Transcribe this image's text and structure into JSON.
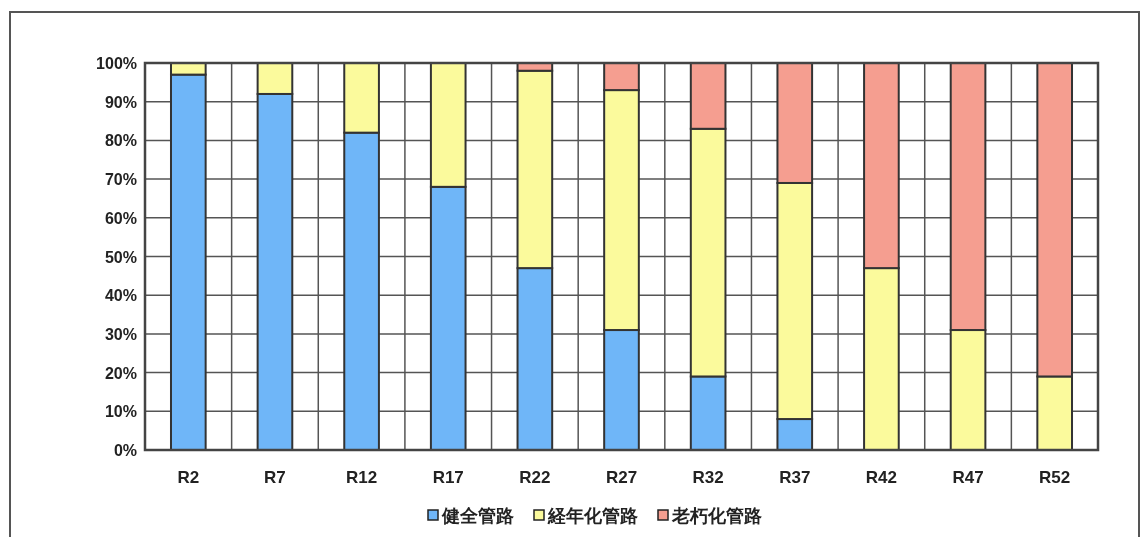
{
  "chart_data": {
    "type": "bar",
    "stacked": true,
    "categories": [
      "R2",
      "R7",
      "R12",
      "R17",
      "R22",
      "R27",
      "R32",
      "R37",
      "R42",
      "R47",
      "R52"
    ],
    "series": [
      {
        "name": "健全管路",
        "color": "#6fb6f8",
        "values": [
          97,
          92,
          82,
          68,
          47,
          31,
          19,
          8,
          0,
          0,
          0
        ]
      },
      {
        "name": "経年化管路",
        "color": "#fbfa9c",
        "values": [
          3,
          8,
          18,
          32,
          51,
          62,
          64,
          61,
          47,
          31,
          19
        ]
      },
      {
        "name": "老朽化管路",
        "color": "#f59e90",
        "values": [
          0,
          0,
          0,
          0,
          2,
          7,
          17,
          31,
          53,
          69,
          81
        ]
      }
    ],
    "ylim": [
      0,
      100
    ],
    "yticks": [
      {
        "value": 0,
        "label": "0%"
      },
      {
        "value": 10,
        "label": "10%"
      },
      {
        "value": 20,
        "label": "20%"
      },
      {
        "value": 30,
        "label": "30%"
      },
      {
        "value": 40,
        "label": "40%"
      },
      {
        "value": 50,
        "label": "50%"
      },
      {
        "value": 60,
        "label": "60%"
      },
      {
        "value": 70,
        "label": "70%"
      },
      {
        "value": 80,
        "label": "80%"
      },
      {
        "value": 90,
        "label": "90%"
      },
      {
        "value": 100,
        "label": "100%"
      }
    ],
    "grid": true,
    "legend": "bottom"
  }
}
